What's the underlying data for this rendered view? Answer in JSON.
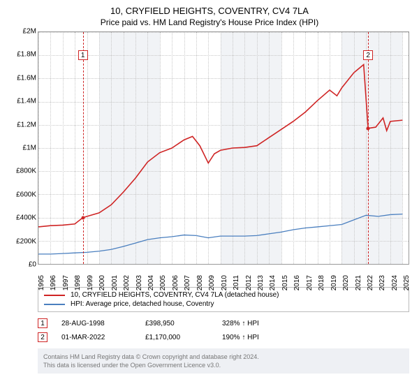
{
  "title": "10, CRYFIELD HEIGHTS, COVENTRY, CV4 7LA",
  "subtitle": "Price paid vs. HM Land Registry's House Price Index (HPI)",
  "chart": {
    "type": "line",
    "background_color": "#ffffff",
    "alt_band_color": "#f1f3f6",
    "grid_color": "#c8c8c8",
    "axis_color": "#999999",
    "x_years": [
      1995,
      1996,
      1997,
      1998,
      1999,
      2000,
      2001,
      2002,
      2003,
      2004,
      2005,
      2006,
      2007,
      2008,
      2009,
      2010,
      2011,
      2012,
      2013,
      2014,
      2015,
      2016,
      2017,
      2018,
      2019,
      2020,
      2021,
      2022,
      2023,
      2024,
      2025
    ],
    "x_range": [
      1995,
      2025.5
    ],
    "ylim": [
      0,
      2000000
    ],
    "ytick_step": 200000,
    "y_labels": [
      "£0",
      "£200K",
      "£400K",
      "£600K",
      "£800K",
      "£1M",
      "£1.2M",
      "£1.4M",
      "£1.6M",
      "£1.8M",
      "£2M"
    ],
    "x_label_fontsize": 10,
    "y_label_fontsize": 10,
    "series": [
      {
        "name": "address",
        "label": "10, CRYFIELD HEIGHTS, COVENTRY, CV4 7LA (detached house)",
        "color": "#cf2424",
        "line_width": 1.6,
        "points": [
          [
            1995,
            320000
          ],
          [
            1996,
            330000
          ],
          [
            1997,
            335000
          ],
          [
            1998,
            345000
          ],
          [
            1998.66,
            398950
          ],
          [
            1999,
            410000
          ],
          [
            2000,
            440000
          ],
          [
            2001,
            510000
          ],
          [
            2002,
            620000
          ],
          [
            2003,
            740000
          ],
          [
            2004,
            880000
          ],
          [
            2005,
            960000
          ],
          [
            2006,
            1000000
          ],
          [
            2007,
            1070000
          ],
          [
            2007.7,
            1100000
          ],
          [
            2008.3,
            1020000
          ],
          [
            2009,
            870000
          ],
          [
            2009.5,
            950000
          ],
          [
            2010,
            980000
          ],
          [
            2011,
            1000000
          ],
          [
            2012,
            1005000
          ],
          [
            2013,
            1020000
          ],
          [
            2014,
            1090000
          ],
          [
            2015,
            1160000
          ],
          [
            2016,
            1230000
          ],
          [
            2017,
            1310000
          ],
          [
            2018,
            1410000
          ],
          [
            2019,
            1500000
          ],
          [
            2019.6,
            1450000
          ],
          [
            2020,
            1520000
          ],
          [
            2021,
            1650000
          ],
          [
            2021.8,
            1720000
          ],
          [
            2022.17,
            1170000
          ],
          [
            2022.8,
            1180000
          ],
          [
            2023.4,
            1260000
          ],
          [
            2023.7,
            1150000
          ],
          [
            2024,
            1230000
          ],
          [
            2025,
            1240000
          ]
        ]
      },
      {
        "name": "hpi",
        "label": "HPI: Average price, detached house, Coventry",
        "color": "#4a7fbf",
        "line_width": 1.3,
        "points": [
          [
            1995,
            85000
          ],
          [
            1996,
            85000
          ],
          [
            1997,
            90000
          ],
          [
            1998,
            95000
          ],
          [
            1999,
            100000
          ],
          [
            2000,
            110000
          ],
          [
            2001,
            125000
          ],
          [
            2002,
            150000
          ],
          [
            2003,
            180000
          ],
          [
            2004,
            210000
          ],
          [
            2005,
            225000
          ],
          [
            2006,
            235000
          ],
          [
            2007,
            250000
          ],
          [
            2008,
            245000
          ],
          [
            2009,
            225000
          ],
          [
            2010,
            240000
          ],
          [
            2011,
            240000
          ],
          [
            2012,
            240000
          ],
          [
            2013,
            245000
          ],
          [
            2014,
            260000
          ],
          [
            2015,
            275000
          ],
          [
            2016,
            295000
          ],
          [
            2017,
            310000
          ],
          [
            2018,
            320000
          ],
          [
            2019,
            330000
          ],
          [
            2020,
            340000
          ],
          [
            2021,
            380000
          ],
          [
            2022,
            420000
          ],
          [
            2023,
            410000
          ],
          [
            2024,
            425000
          ],
          [
            2025,
            430000
          ]
        ]
      }
    ],
    "sale_markers": [
      {
        "n": 1,
        "color": "#cf2424",
        "x": 1998.66,
        "y": 398950,
        "box_y": 1800000
      },
      {
        "n": 2,
        "color": "#cf2424",
        "x": 2022.17,
        "y": 1170000,
        "box_y": 1800000
      }
    ]
  },
  "legend": {
    "rows": [
      {
        "color": "#cf2424",
        "label": "10, CRYFIELD HEIGHTS, COVENTRY, CV4 7LA (detached house)"
      },
      {
        "color": "#4a7fbf",
        "label": "HPI: Average price, detached house, Coventry"
      }
    ]
  },
  "footnotes": [
    {
      "n": "1",
      "color": "#cf2424",
      "date": "28-AUG-1998",
      "price": "£398,950",
      "pct": "328% ↑ HPI"
    },
    {
      "n": "2",
      "color": "#cf2424",
      "date": "01-MAR-2022",
      "price": "£1,170,000",
      "pct": "190% ↑ HPI"
    }
  ],
  "credit": {
    "line1": "Contains HM Land Registry data © Crown copyright and database right 2024.",
    "line2": "This data is licensed under the Open Government Licence v3.0."
  }
}
